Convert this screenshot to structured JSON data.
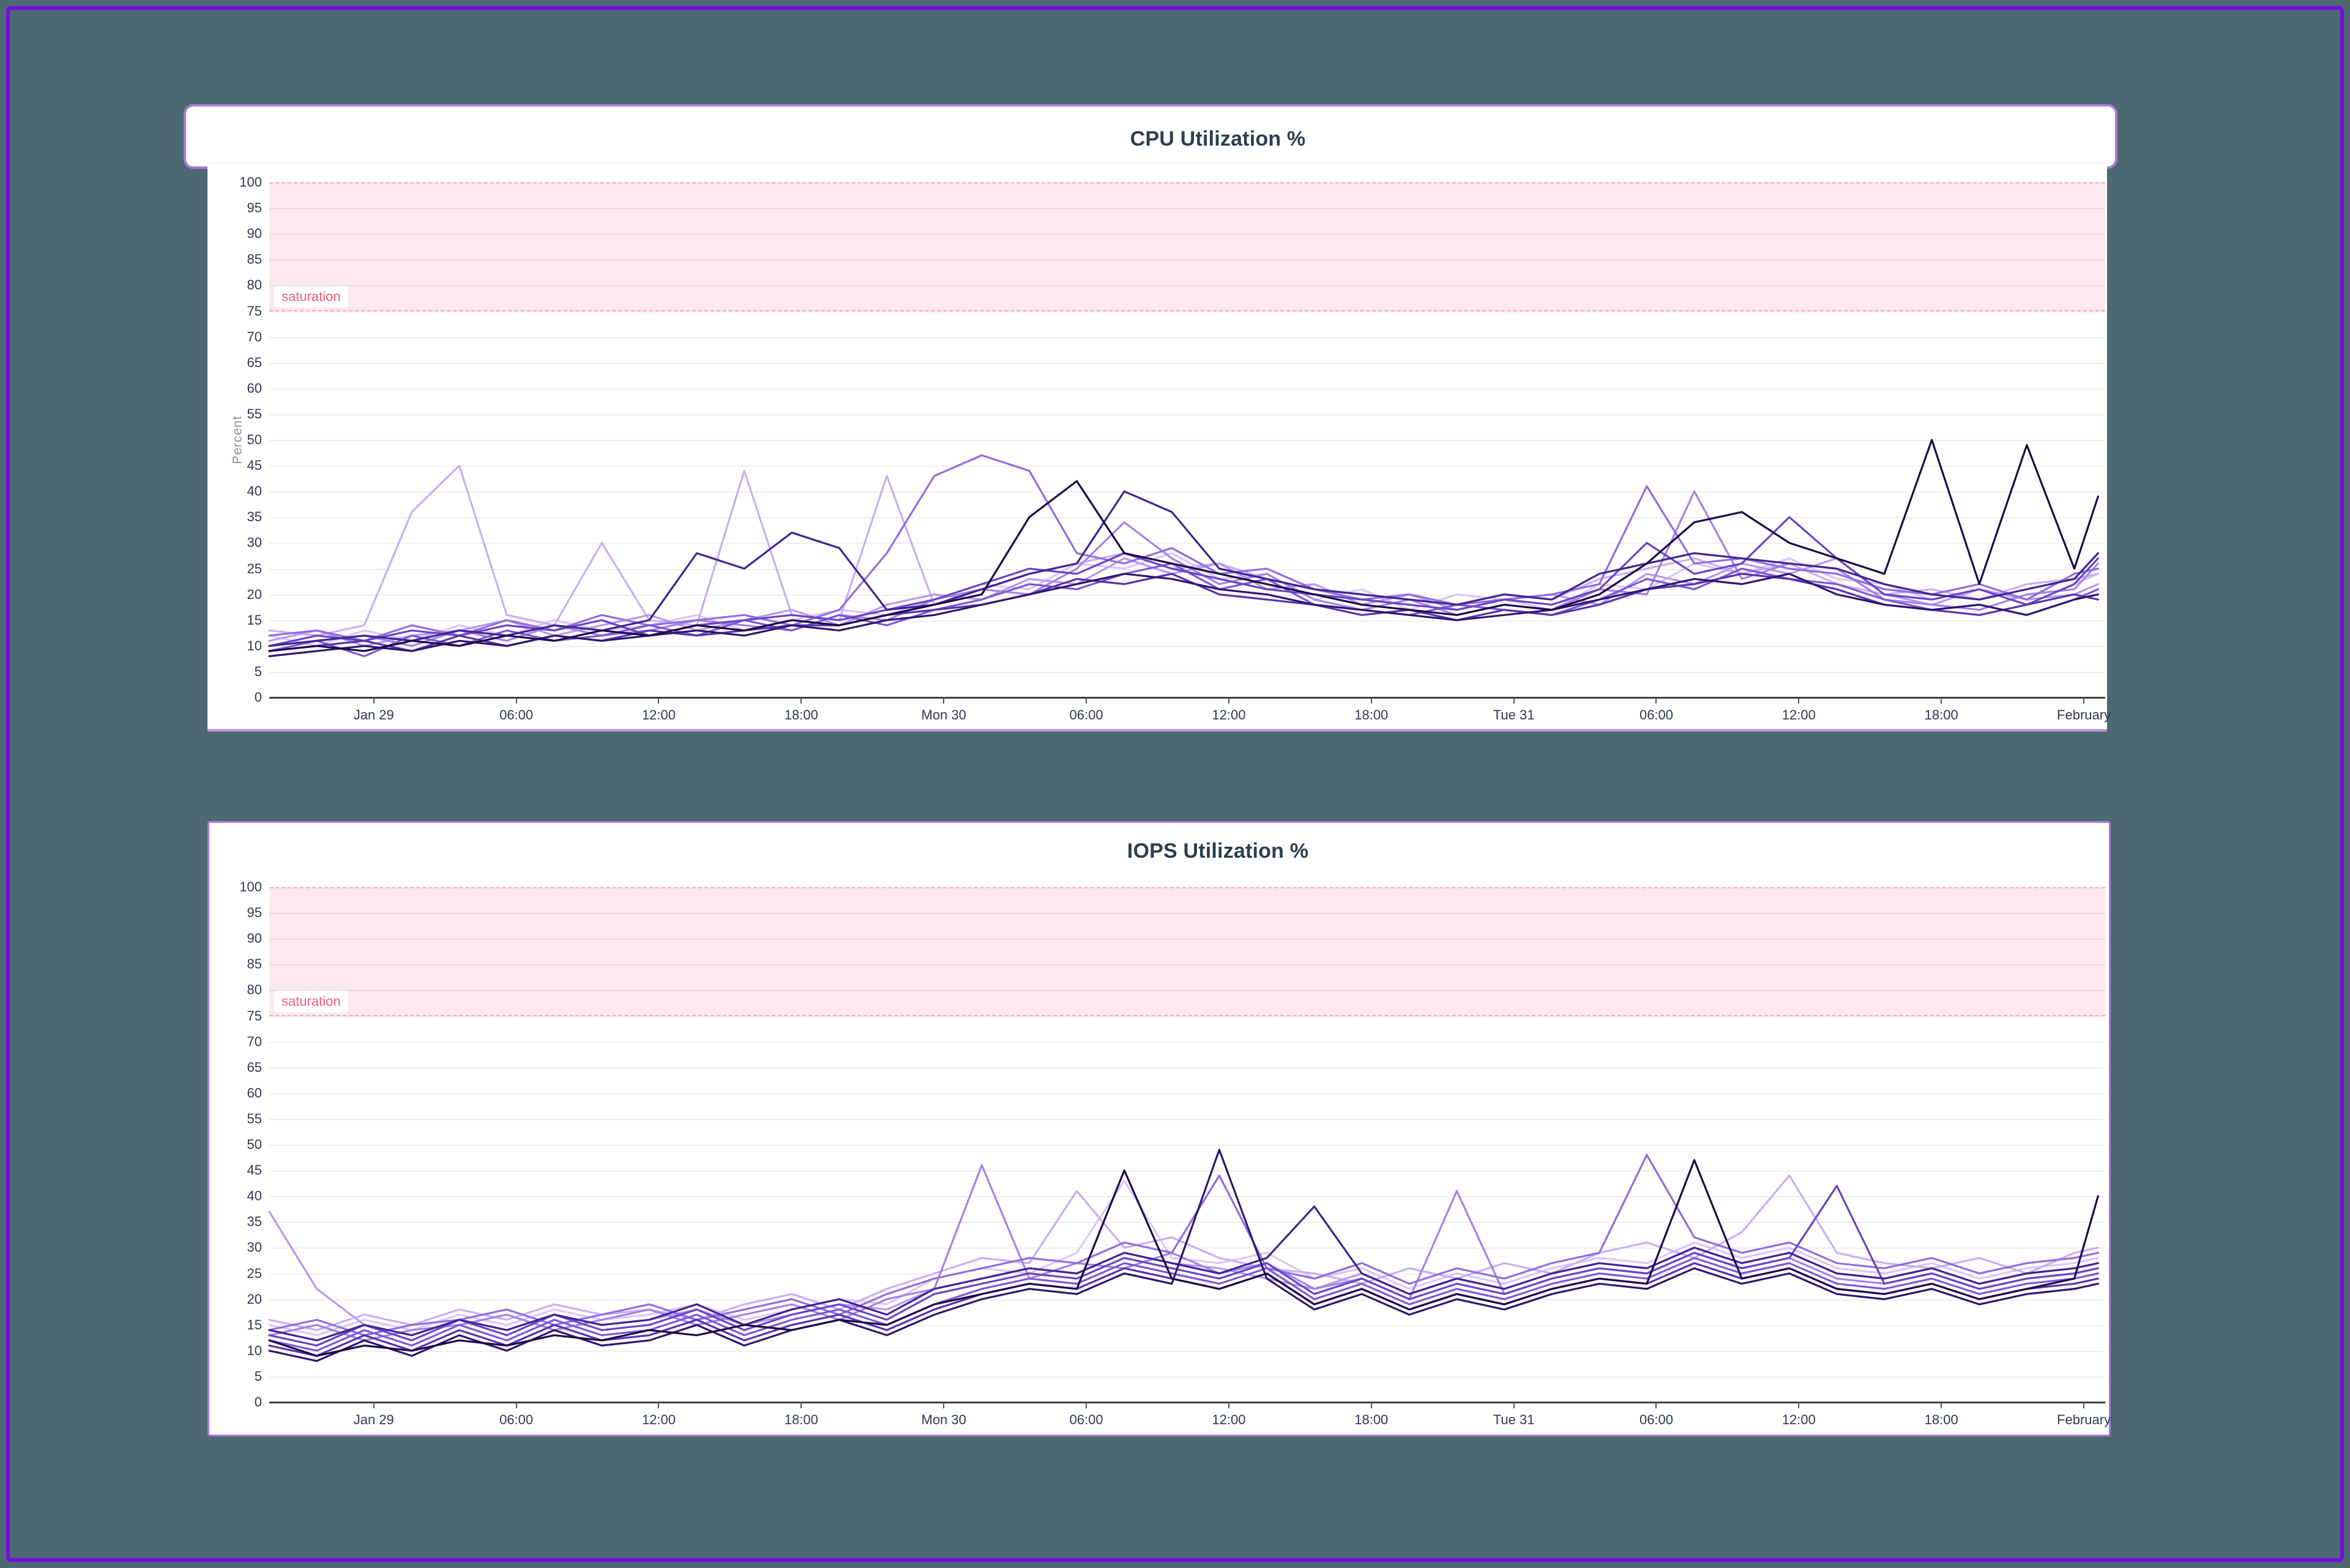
{
  "page": {
    "background_color": "#4d6971",
    "frame_color": "#7a0ae2",
    "panel_border_color": "#a779d9",
    "title_color": "#2c3e50"
  },
  "chart_data": [
    {
      "type": "line",
      "title": "CPU Utilization %",
      "ylabel": "Percent",
      "xlabel": "",
      "ylim": [
        0,
        100
      ],
      "xlim": [
        0,
        77.3
      ],
      "y_tick_step": 5,
      "grid": true,
      "legend": "none",
      "saturation_band": {
        "label": "saturation",
        "from": 75,
        "to": 100,
        "fill": "#fce8ed",
        "line_color": "#f3abbe",
        "text_color": "#ee5d7d"
      },
      "x_tick_labels": [
        "Jan 29",
        "06:00",
        "12:00",
        "18:00",
        "Mon 30",
        "06:00",
        "12:00",
        "18:00",
        "Tue 31",
        "06:00",
        "12:00",
        "18:00",
        "February"
      ],
      "x_tick_hours": [
        4.4,
        10.4,
        16.4,
        22.4,
        28.4,
        34.4,
        40.4,
        46.4,
        52.4,
        58.4,
        64.4,
        70.4,
        76.4
      ],
      "x": [
        0,
        2,
        4,
        6,
        8,
        10,
        12,
        14,
        16,
        18,
        20,
        22,
        24,
        26,
        28,
        30,
        32,
        34,
        36,
        38,
        40,
        42,
        44,
        46,
        48,
        50,
        52,
        54,
        56,
        58,
        60,
        62,
        64,
        66,
        68,
        70,
        72,
        74,
        76,
        77
      ],
      "series": [
        {
          "color": "#d9c7f5",
          "values": [
            12,
            10,
            13,
            11,
            14,
            12,
            15,
            13,
            14,
            16,
            13,
            15,
            17,
            16,
            19,
            22,
            21,
            26,
            25,
            28,
            23,
            24,
            19,
            21,
            17,
            20,
            19,
            17,
            22,
            21,
            26,
            24,
            27,
            23,
            22,
            19,
            21,
            18,
            22,
            24
          ]
        },
        {
          "color": "#c9aef3",
          "values": [
            13,
            12,
            14,
            36,
            45,
            16,
            14,
            30,
            15,
            14,
            44,
            16,
            15,
            43,
            18,
            21,
            24,
            26,
            28,
            25,
            26,
            23,
            21,
            20,
            19,
            18,
            20,
            19,
            23,
            25,
            27,
            24,
            26,
            22,
            20,
            21,
            19,
            22,
            23,
            24
          ]
        },
        {
          "color": "#b897ef",
          "values": [
            11,
            13,
            10,
            12,
            13,
            15,
            12,
            14,
            16,
            13,
            15,
            17,
            14,
            18,
            20,
            19,
            23,
            22,
            27,
            24,
            26,
            21,
            22,
            18,
            20,
            17,
            19,
            20,
            18,
            24,
            22,
            26,
            24,
            27,
            20,
            18,
            21,
            19,
            20,
            22
          ]
        },
        {
          "color": "#a681e8",
          "values": [
            10,
            11,
            12,
            10,
            13,
            11,
            14,
            12,
            13,
            15,
            14,
            13,
            16,
            15,
            19,
            21,
            20,
            25,
            34,
            27,
            22,
            24,
            19,
            17,
            19,
            16,
            18,
            17,
            21,
            20,
            40,
            23,
            26,
            25,
            19,
            18,
            17,
            20,
            21,
            26
          ]
        },
        {
          "color": "#936ce0",
          "values": [
            12,
            13,
            11,
            14,
            12,
            15,
            13,
            16,
            14,
            15,
            16,
            14,
            17,
            28,
            43,
            47,
            44,
            28,
            26,
            29,
            24,
            25,
            21,
            19,
            20,
            18,
            19,
            20,
            22,
            41,
            26,
            27,
            25,
            24,
            21,
            20,
            22,
            19,
            24,
            25
          ]
        },
        {
          "color": "#7f57d4",
          "values": [
            9,
            11,
            8,
            12,
            10,
            13,
            11,
            12,
            14,
            12,
            15,
            13,
            16,
            14,
            17,
            19,
            22,
            21,
            24,
            26,
            21,
            23,
            18,
            17,
            16,
            18,
            17,
            16,
            19,
            23,
            21,
            25,
            23,
            22,
            19,
            17,
            18,
            16,
            19,
            21
          ]
        },
        {
          "color": "#6a44c4",
          "values": [
            10,
            12,
            11,
            13,
            12,
            14,
            13,
            15,
            12,
            14,
            15,
            16,
            15,
            17,
            19,
            22,
            25,
            24,
            28,
            25,
            23,
            21,
            20,
            19,
            18,
            17,
            19,
            18,
            21,
            30,
            24,
            26,
            35,
            27,
            20,
            19,
            21,
            18,
            22,
            27
          ]
        },
        {
          "color": "#5534ae",
          "values": [
            9,
            10,
            11,
            9,
            12,
            10,
            12,
            11,
            13,
            12,
            13,
            14,
            14,
            16,
            17,
            18,
            20,
            23,
            22,
            24,
            20,
            19,
            18,
            16,
            17,
            15,
            17,
            16,
            18,
            21,
            22,
            24,
            23,
            21,
            18,
            17,
            16,
            18,
            20,
            19
          ]
        },
        {
          "color": "#402492",
          "values": [
            10,
            11,
            12,
            11,
            13,
            12,
            14,
            13,
            15,
            28,
            25,
            32,
            29,
            17,
            18,
            21,
            24,
            26,
            40,
            36,
            25,
            23,
            21,
            20,
            19,
            18,
            20,
            19,
            24,
            26,
            28,
            27,
            26,
            25,
            22,
            20,
            19,
            21,
            23,
            28
          ]
        },
        {
          "color": "#2c176e",
          "values": [
            8,
            9,
            10,
            9,
            11,
            10,
            12,
            11,
            12,
            13,
            12,
            14,
            13,
            15,
            16,
            18,
            20,
            22,
            24,
            23,
            21,
            20,
            18,
            17,
            16,
            15,
            16,
            17,
            19,
            21,
            23,
            22,
            24,
            20,
            18,
            17,
            18,
            16,
            19,
            20
          ]
        },
        {
          "color": "#1b0b47",
          "values": [
            9,
            10,
            9,
            11,
            10,
            12,
            11,
            13,
            12,
            14,
            13,
            15,
            14,
            16,
            18,
            20,
            35,
            42,
            28,
            26,
            24,
            22,
            20,
            18,
            17,
            16,
            18,
            17,
            20,
            26,
            34,
            36,
            30,
            27,
            24,
            50,
            22,
            49,
            25,
            39
          ]
        }
      ]
    },
    {
      "type": "line",
      "title": "IOPS Utilization %",
      "ylabel": "",
      "xlabel": "",
      "ylim": [
        0,
        100
      ],
      "xlim": [
        0,
        77.3
      ],
      "y_tick_step": 5,
      "grid": true,
      "legend": "none",
      "saturation_band": {
        "label": "saturation",
        "from": 75,
        "to": 100,
        "fill": "#fce8ed",
        "line_color": "#f3abbe",
        "text_color": "#ee5d7d"
      },
      "x_tick_labels": [
        "Jan 29",
        "06:00",
        "12:00",
        "18:00",
        "Mon 30",
        "06:00",
        "12:00",
        "18:00",
        "Tue 31",
        "06:00",
        "12:00",
        "18:00",
        "February"
      ],
      "x_tick_hours": [
        4.4,
        10.4,
        16.4,
        22.4,
        28.4,
        34.4,
        40.4,
        46.4,
        52.4,
        58.4,
        64.4,
        70.4,
        76.4
      ],
      "x": [
        0,
        2,
        4,
        6,
        8,
        10,
        12,
        14,
        16,
        18,
        20,
        22,
        24,
        26,
        28,
        30,
        32,
        34,
        36,
        38,
        40,
        42,
        44,
        46,
        48,
        50,
        52,
        54,
        56,
        58,
        60,
        62,
        64,
        66,
        68,
        70,
        72,
        74,
        76,
        77
      ],
      "series": [
        {
          "color": "#d9c7f5",
          "values": [
            15,
            13,
            16,
            14,
            17,
            15,
            18,
            16,
            17,
            19,
            16,
            18,
            20,
            19,
            24,
            26,
            25,
            29,
            43,
            28,
            27,
            29,
            24,
            26,
            22,
            25,
            23,
            26,
            28,
            27,
            31,
            28,
            30,
            26,
            25,
            27,
            24,
            26,
            27,
            28
          ]
        },
        {
          "color": "#c9aef3",
          "values": [
            16,
            14,
            17,
            15,
            18,
            16,
            19,
            17,
            18,
            16,
            19,
            21,
            18,
            22,
            25,
            28,
            27,
            41,
            30,
            32,
            28,
            26,
            25,
            23,
            26,
            24,
            27,
            25,
            29,
            31,
            28,
            33,
            44,
            29,
            27,
            26,
            28,
            25,
            29,
            30
          ]
        },
        {
          "color": "#b897ef",
          "values": [
            37,
            22,
            15,
            13,
            16,
            14,
            17,
            15,
            16,
            18,
            15,
            17,
            19,
            18,
            22,
            24,
            26,
            25,
            29,
            27,
            26,
            24,
            22,
            25,
            21,
            24,
            22,
            25,
            27,
            26,
            30,
            27,
            29,
            25,
            24,
            26,
            23,
            25,
            26,
            27
          ]
        },
        {
          "color": "#a681e8",
          "values": [
            13,
            15,
            12,
            14,
            15,
            17,
            14,
            16,
            18,
            15,
            17,
            19,
            16,
            20,
            22,
            46,
            24,
            27,
            26,
            29,
            25,
            27,
            22,
            24,
            20,
            41,
            21,
            24,
            26,
            25,
            29,
            26,
            28,
            24,
            23,
            25,
            22,
            24,
            25,
            26
          ]
        },
        {
          "color": "#936ce0",
          "values": [
            14,
            16,
            13,
            15,
            16,
            18,
            15,
            17,
            19,
            16,
            18,
            20,
            17,
            21,
            24,
            26,
            28,
            27,
            31,
            29,
            44,
            26,
            24,
            27,
            23,
            26,
            24,
            27,
            29,
            48,
            32,
            29,
            31,
            27,
            26,
            28,
            25,
            27,
            28,
            29
          ]
        },
        {
          "color": "#7f57d4",
          "values": [
            12,
            10,
            14,
            11,
            15,
            12,
            16,
            13,
            14,
            17,
            13,
            16,
            18,
            15,
            19,
            22,
            24,
            23,
            27,
            25,
            23,
            26,
            20,
            23,
            19,
            22,
            20,
            23,
            25,
            24,
            28,
            25,
            27,
            23,
            22,
            24,
            21,
            23,
            24,
            25
          ]
        },
        {
          "color": "#6a44c4",
          "values": [
            13,
            11,
            15,
            12,
            16,
            13,
            17,
            14,
            15,
            18,
            14,
            17,
            19,
            16,
            21,
            23,
            25,
            24,
            28,
            26,
            24,
            27,
            21,
            24,
            20,
            23,
            21,
            24,
            26,
            25,
            29,
            26,
            28,
            42,
            23,
            25,
            22,
            24,
            25,
            26
          ]
        },
        {
          "color": "#5534ae",
          "values": [
            11,
            9,
            13,
            10,
            14,
            11,
            15,
            12,
            13,
            16,
            12,
            15,
            17,
            14,
            18,
            21,
            23,
            22,
            26,
            24,
            22,
            25,
            19,
            22,
            18,
            21,
            19,
            22,
            24,
            23,
            27,
            24,
            26,
            22,
            21,
            23,
            20,
            22,
            23,
            24
          ]
        },
        {
          "color": "#402492",
          "values": [
            14,
            12,
            15,
            13,
            16,
            14,
            17,
            15,
            16,
            19,
            15,
            18,
            20,
            17,
            22,
            24,
            26,
            25,
            29,
            27,
            25,
            28,
            38,
            25,
            21,
            24,
            22,
            25,
            27,
            26,
            30,
            27,
            29,
            25,
            24,
            26,
            23,
            25,
            26,
            27
          ]
        },
        {
          "color": "#2c176e",
          "values": [
            10,
            8,
            12,
            9,
            13,
            10,
            14,
            11,
            12,
            15,
            11,
            14,
            16,
            13,
            17,
            20,
            22,
            21,
            25,
            23,
            49,
            24,
            18,
            21,
            17,
            20,
            18,
            21,
            23,
            22,
            26,
            23,
            25,
            21,
            20,
            22,
            19,
            21,
            22,
            23
          ]
        },
        {
          "color": "#1b0b47",
          "values": [
            12,
            9,
            11,
            10,
            12,
            11,
            13,
            12,
            14,
            13,
            15,
            14,
            16,
            15,
            19,
            21,
            23,
            22,
            45,
            24,
            22,
            25,
            19,
            22,
            18,
            21,
            19,
            22,
            24,
            23,
            47,
            24,
            26,
            22,
            21,
            23,
            20,
            22,
            24,
            40
          ]
        }
      ]
    }
  ]
}
